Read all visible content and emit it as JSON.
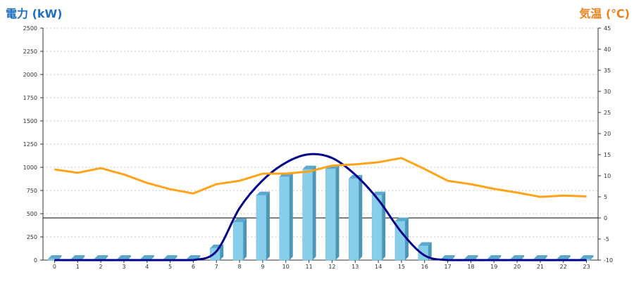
{
  "chart_data": {
    "type": "bar",
    "left_axis_title": "電力 (kW)",
    "right_axis_title": "気温 (℃)",
    "categories": [
      "0",
      "1",
      "2",
      "3",
      "4",
      "5",
      "6",
      "7",
      "8",
      "9",
      "10",
      "11",
      "12",
      "13",
      "14",
      "15",
      "16",
      "17",
      "18",
      "19",
      "20",
      "21",
      "22",
      "23"
    ],
    "left_axis": {
      "range": [
        0,
        2500
      ],
      "ticks": [
        0,
        250,
        500,
        750,
        1000,
        1250,
        1500,
        1750,
        2000,
        2250,
        2500
      ]
    },
    "right_axis": {
      "range": [
        -10,
        45
      ],
      "ticks": [
        -10,
        -5,
        0,
        5,
        10,
        15,
        20,
        25,
        30,
        35,
        40,
        45
      ]
    },
    "grid": true,
    "series": [
      {
        "type": "bar",
        "axis": "left",
        "color": "#87ceeb",
        "values": [
          15,
          15,
          15,
          15,
          15,
          15,
          15,
          130,
          410,
          700,
          900,
          980,
          985,
          880,
          700,
          420,
          155,
          15,
          15,
          15,
          15,
          15,
          15,
          15
        ]
      },
      {
        "type": "line",
        "axis": "left",
        "color": "#00008b",
        "values": [
          0,
          0,
          0,
          0,
          0,
          0,
          0,
          95,
          560,
          860,
          1050,
          1140,
          1100,
          920,
          650,
          300,
          50,
          0,
          0,
          0,
          0,
          0,
          0,
          0
        ]
      },
      {
        "type": "line",
        "axis": "right",
        "color": "#ffa31a",
        "values": [
          11.5,
          10.7,
          11.8,
          10.3,
          8.3,
          6.8,
          5.8,
          8.0,
          8.8,
          10.5,
          10.5,
          11.0,
          12.4,
          12.7,
          13.2,
          14.2,
          11.6,
          8.8,
          8.0,
          6.9,
          6.0,
          5.0,
          5.3,
          5.1
        ]
      }
    ]
  }
}
